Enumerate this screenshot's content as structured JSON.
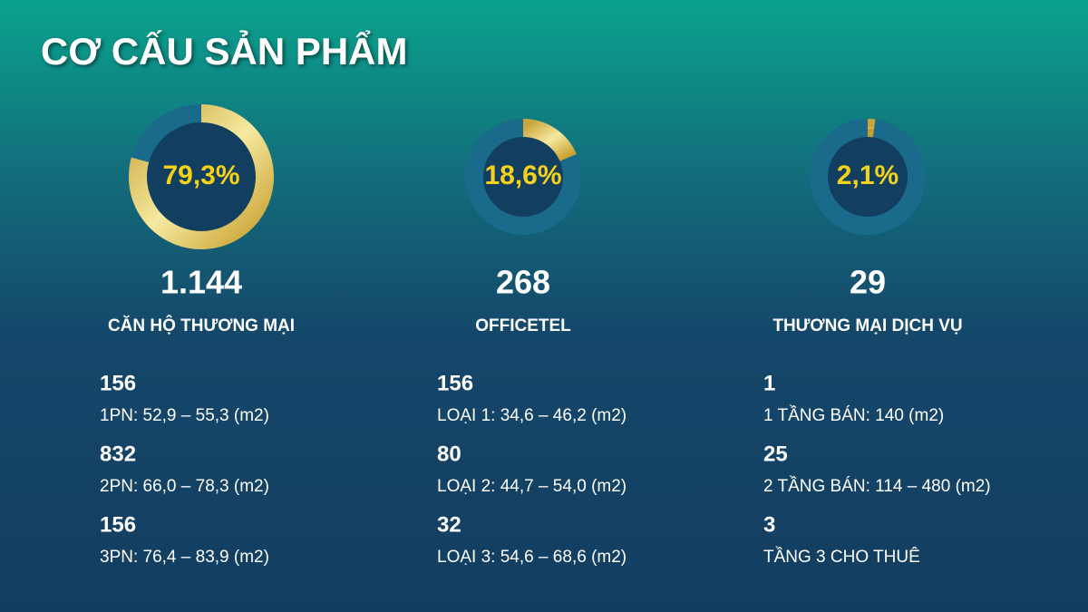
{
  "title": "CƠ CẤU SẢN PHẨM",
  "columns": [
    {
      "percent": 79.3,
      "percent_label": "79,3%",
      "count": "1.144",
      "name": "CĂN HỘ THƯƠNG MẠI",
      "items": [
        {
          "count": "156",
          "desc": "1PN: 52,9 – 55,3 (m2)"
        },
        {
          "count": "832",
          "desc": "2PN: 66,0 – 78,3 (m2)"
        },
        {
          "count": "156",
          "desc": "3PN: 76,4 – 83,9 (m2)"
        }
      ]
    },
    {
      "percent": 18.6,
      "percent_label": "18,6%",
      "count": "268",
      "name": "OFFICETEL",
      "items": [
        {
          "count": "156",
          "desc": "LOẠI 1: 34,6 – 46,2 (m2)"
        },
        {
          "count": "80",
          "desc": "LOẠI 2: 44,7 – 54,0 (m2)"
        },
        {
          "count": "32",
          "desc": "LOẠI 3: 54,6 – 68,6 (m2)"
        }
      ]
    },
    {
      "percent": 2.1,
      "percent_label": "2,1%",
      "count": "29",
      "name": "THƯƠNG MẠI DỊCH VỤ",
      "items": [
        {
          "count": "1",
          "desc": "1 TẦNG BÁN: 140 (m2)"
        },
        {
          "count": "25",
          "desc": "2 TẦNG BÁN: 114 – 480 (m2)"
        },
        {
          "count": "3",
          "desc": "TẦNG 3 CHO THUÊ"
        }
      ]
    }
  ]
}
